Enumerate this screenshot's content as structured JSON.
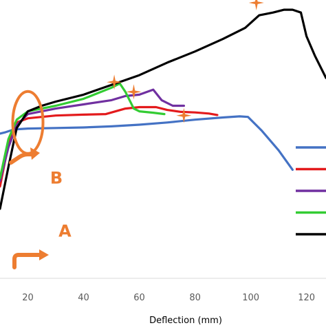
{
  "chart_data": {
    "type": "line",
    "title": "",
    "xlabel": "Deflection (mm)",
    "ylabel": "",
    "xlim": [
      10,
      127
    ],
    "ylim": [
      0,
      100
    ],
    "x_ticks": [
      20,
      40,
      60,
      80,
      100,
      120
    ],
    "grid": false,
    "legend": "right, unlabeled",
    "series": [
      {
        "color": "#4472C4",
        "points": [
          [
            10,
            52
          ],
          [
            12,
            52.5
          ],
          [
            15,
            53.5
          ],
          [
            20,
            53.8
          ],
          [
            30,
            54
          ],
          [
            40,
            54.2
          ],
          [
            50,
            54.6
          ],
          [
            60,
            55.2
          ],
          [
            70,
            56
          ],
          [
            80,
            57
          ],
          [
            90,
            57.8
          ],
          [
            96,
            58.2
          ],
          [
            99,
            58
          ],
          [
            104,
            53
          ],
          [
            110,
            46
          ],
          [
            115,
            39
          ]
        ]
      },
      {
        "color": "#E31A1C",
        "points": [
          [
            10,
            33
          ],
          [
            12,
            43
          ],
          [
            14,
            52
          ],
          [
            16,
            56
          ],
          [
            20,
            57.5
          ],
          [
            30,
            58.5
          ],
          [
            40,
            58.8
          ],
          [
            48,
            59
          ],
          [
            55,
            61
          ],
          [
            60,
            61.5
          ],
          [
            66,
            61.5
          ],
          [
            70,
            60.5
          ],
          [
            75,
            59.8
          ],
          [
            80,
            59.6
          ],
          [
            85,
            59.2
          ],
          [
            88,
            58.7
          ]
        ]
      },
      {
        "color": "#7030A0",
        "points": [
          [
            10,
            35
          ],
          [
            13,
            47
          ],
          [
            16,
            55
          ],
          [
            20,
            59
          ],
          [
            30,
            61
          ],
          [
            40,
            62.5
          ],
          [
            50,
            64
          ],
          [
            55,
            65.5
          ],
          [
            60,
            66
          ],
          [
            65,
            67.8
          ],
          [
            68,
            64
          ],
          [
            72,
            62
          ],
          [
            76,
            62
          ]
        ]
      },
      {
        "color": "#33CC33",
        "points": [
          [
            10,
            36
          ],
          [
            13,
            50
          ],
          [
            16,
            57
          ],
          [
            20,
            60
          ],
          [
            30,
            62
          ],
          [
            40,
            64.5
          ],
          [
            50,
            68.5
          ],
          [
            53,
            70
          ],
          [
            55,
            67
          ],
          [
            58,
            61
          ],
          [
            60,
            60
          ],
          [
            65,
            59.5
          ],
          [
            69,
            59
          ]
        ]
      },
      {
        "color": "#000000",
        "points": [
          [
            10,
            25
          ],
          [
            13,
            40
          ],
          [
            16,
            54
          ],
          [
            20,
            60
          ],
          [
            25,
            62
          ],
          [
            30,
            63.5
          ],
          [
            40,
            66
          ],
          [
            50,
            69.5
          ],
          [
            60,
            73
          ],
          [
            70,
            77.5
          ],
          [
            80,
            81.5
          ],
          [
            90,
            86
          ],
          [
            98,
            90
          ],
          [
            103,
            94.5
          ],
          [
            108,
            95.5
          ],
          [
            112,
            96.5
          ],
          [
            115,
            96.5
          ],
          [
            118,
            95.5
          ],
          [
            120,
            87
          ],
          [
            123,
            80
          ],
          [
            127,
            72
          ]
        ]
      }
    ],
    "legend_entries": [
      {
        "color": "#4472C4"
      },
      {
        "color": "#E31A1C"
      },
      {
        "color": "#7030A0"
      },
      {
        "color": "#33CC33"
      },
      {
        "color": "#000000"
      }
    ],
    "markers": [
      {
        "symbol": "four-point-star",
        "color": "#ED7D31",
        "x": 51,
        "y": 70.5
      },
      {
        "symbol": "four-point-star",
        "color": "#ED7D31",
        "x": 58,
        "y": 67
      },
      {
        "symbol": "four-point-star",
        "color": "#ED7D31",
        "x": 76,
        "y": 58.5
      },
      {
        "symbol": "four-point-star",
        "color": "#ED7D31",
        "x": 102,
        "y": 99
      }
    ],
    "annotations": [
      {
        "text": "A",
        "color": "#ED7D31",
        "x": 31,
        "y": 15
      },
      {
        "text": "B",
        "color": "#ED7D31",
        "x": 28,
        "y": 34
      },
      {
        "shape": "ellipse",
        "color": "#ED7D31",
        "x": 20,
        "y": 56
      }
    ]
  }
}
